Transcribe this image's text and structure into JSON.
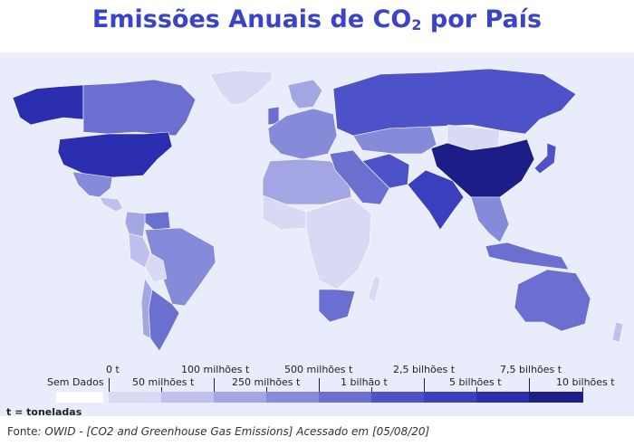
{
  "title": {
    "text": "Emissões Anuais de CO",
    "subscript": "2",
    "suffix": " por País"
  },
  "legend": {
    "no_data_label": "Sem Dados",
    "unit_note": "t = toneladas",
    "bins": [
      {
        "color": "#d9d9f5"
      },
      {
        "color": "#bfc1ec"
      },
      {
        "color": "#a3a6e3"
      },
      {
        "color": "#868bd9"
      },
      {
        "color": "#6a6fd0"
      },
      {
        "color": "#4d52c8"
      },
      {
        "color": "#3a3fc0"
      },
      {
        "color": "#2b2eae"
      },
      {
        "color": "#1c1d86"
      }
    ],
    "ticks_top": [
      "0 t",
      "100 milhões t",
      "500 milhões t",
      "2,5 bilhões t",
      "7,5 bilhões t"
    ],
    "ticks_bottom": [
      "50 milhões t",
      "250 milhões t",
      "1 bilhão t",
      "5 bilhões t",
      "10 bilhões t"
    ]
  },
  "regions": [
    {
      "name": "greenland",
      "color": "#d9d9f5"
    },
    {
      "name": "alaska",
      "color": "#2b2eae"
    },
    {
      "name": "canada",
      "color": "#6a6fd0"
    },
    {
      "name": "usa",
      "color": "#2b2eae"
    },
    {
      "name": "mexico",
      "color": "#868bd9"
    },
    {
      "name": "central-america",
      "color": "#bfc1ec"
    },
    {
      "name": "venezuela",
      "color": "#6a6fd0"
    },
    {
      "name": "colombia",
      "color": "#a3a6e3"
    },
    {
      "name": "brazil",
      "color": "#868bd9"
    },
    {
      "name": "peru",
      "color": "#bfc1ec"
    },
    {
      "name": "bolivia",
      "color": "#d9d9f5"
    },
    {
      "name": "argentina",
      "color": "#6a6fd0"
    },
    {
      "name": "chile",
      "color": "#a3a6e3"
    },
    {
      "name": "europe",
      "color": "#868bd9"
    },
    {
      "name": "uk",
      "color": "#6a6fd0"
    },
    {
      "name": "scandinavia",
      "color": "#a3a6e3"
    },
    {
      "name": "russia",
      "color": "#4d52c8"
    },
    {
      "name": "north-africa",
      "color": "#a3a6e3"
    },
    {
      "name": "west-africa",
      "color": "#d9d9f5"
    },
    {
      "name": "central-africa",
      "color": "#d9d9f5"
    },
    {
      "name": "south-africa",
      "color": "#6a6fd0"
    },
    {
      "name": "middle-east",
      "color": "#6a6fd0"
    },
    {
      "name": "iran",
      "color": "#4d52c8"
    },
    {
      "name": "kazakhstan",
      "color": "#868bd9"
    },
    {
      "name": "india",
      "color": "#3a3fc0"
    },
    {
      "name": "china",
      "color": "#1c1d86"
    },
    {
      "name": "mongolia",
      "color": "#d9d9f5"
    },
    {
      "name": "japan",
      "color": "#4d52c8"
    },
    {
      "name": "southeast-asia",
      "color": "#868bd9"
    },
    {
      "name": "indonesia",
      "color": "#6a6fd0"
    },
    {
      "name": "australia",
      "color": "#6a6fd0"
    },
    {
      "name": "new-zealand",
      "color": "#bfc1ec"
    },
    {
      "name": "madagascar",
      "color": "#d9d9f5"
    }
  ],
  "source": {
    "prefix": "Fonte",
    "text": ": OWID - [CO2 and Greenhouse Gas Emissions] Acessado em [05/08/20]"
  }
}
